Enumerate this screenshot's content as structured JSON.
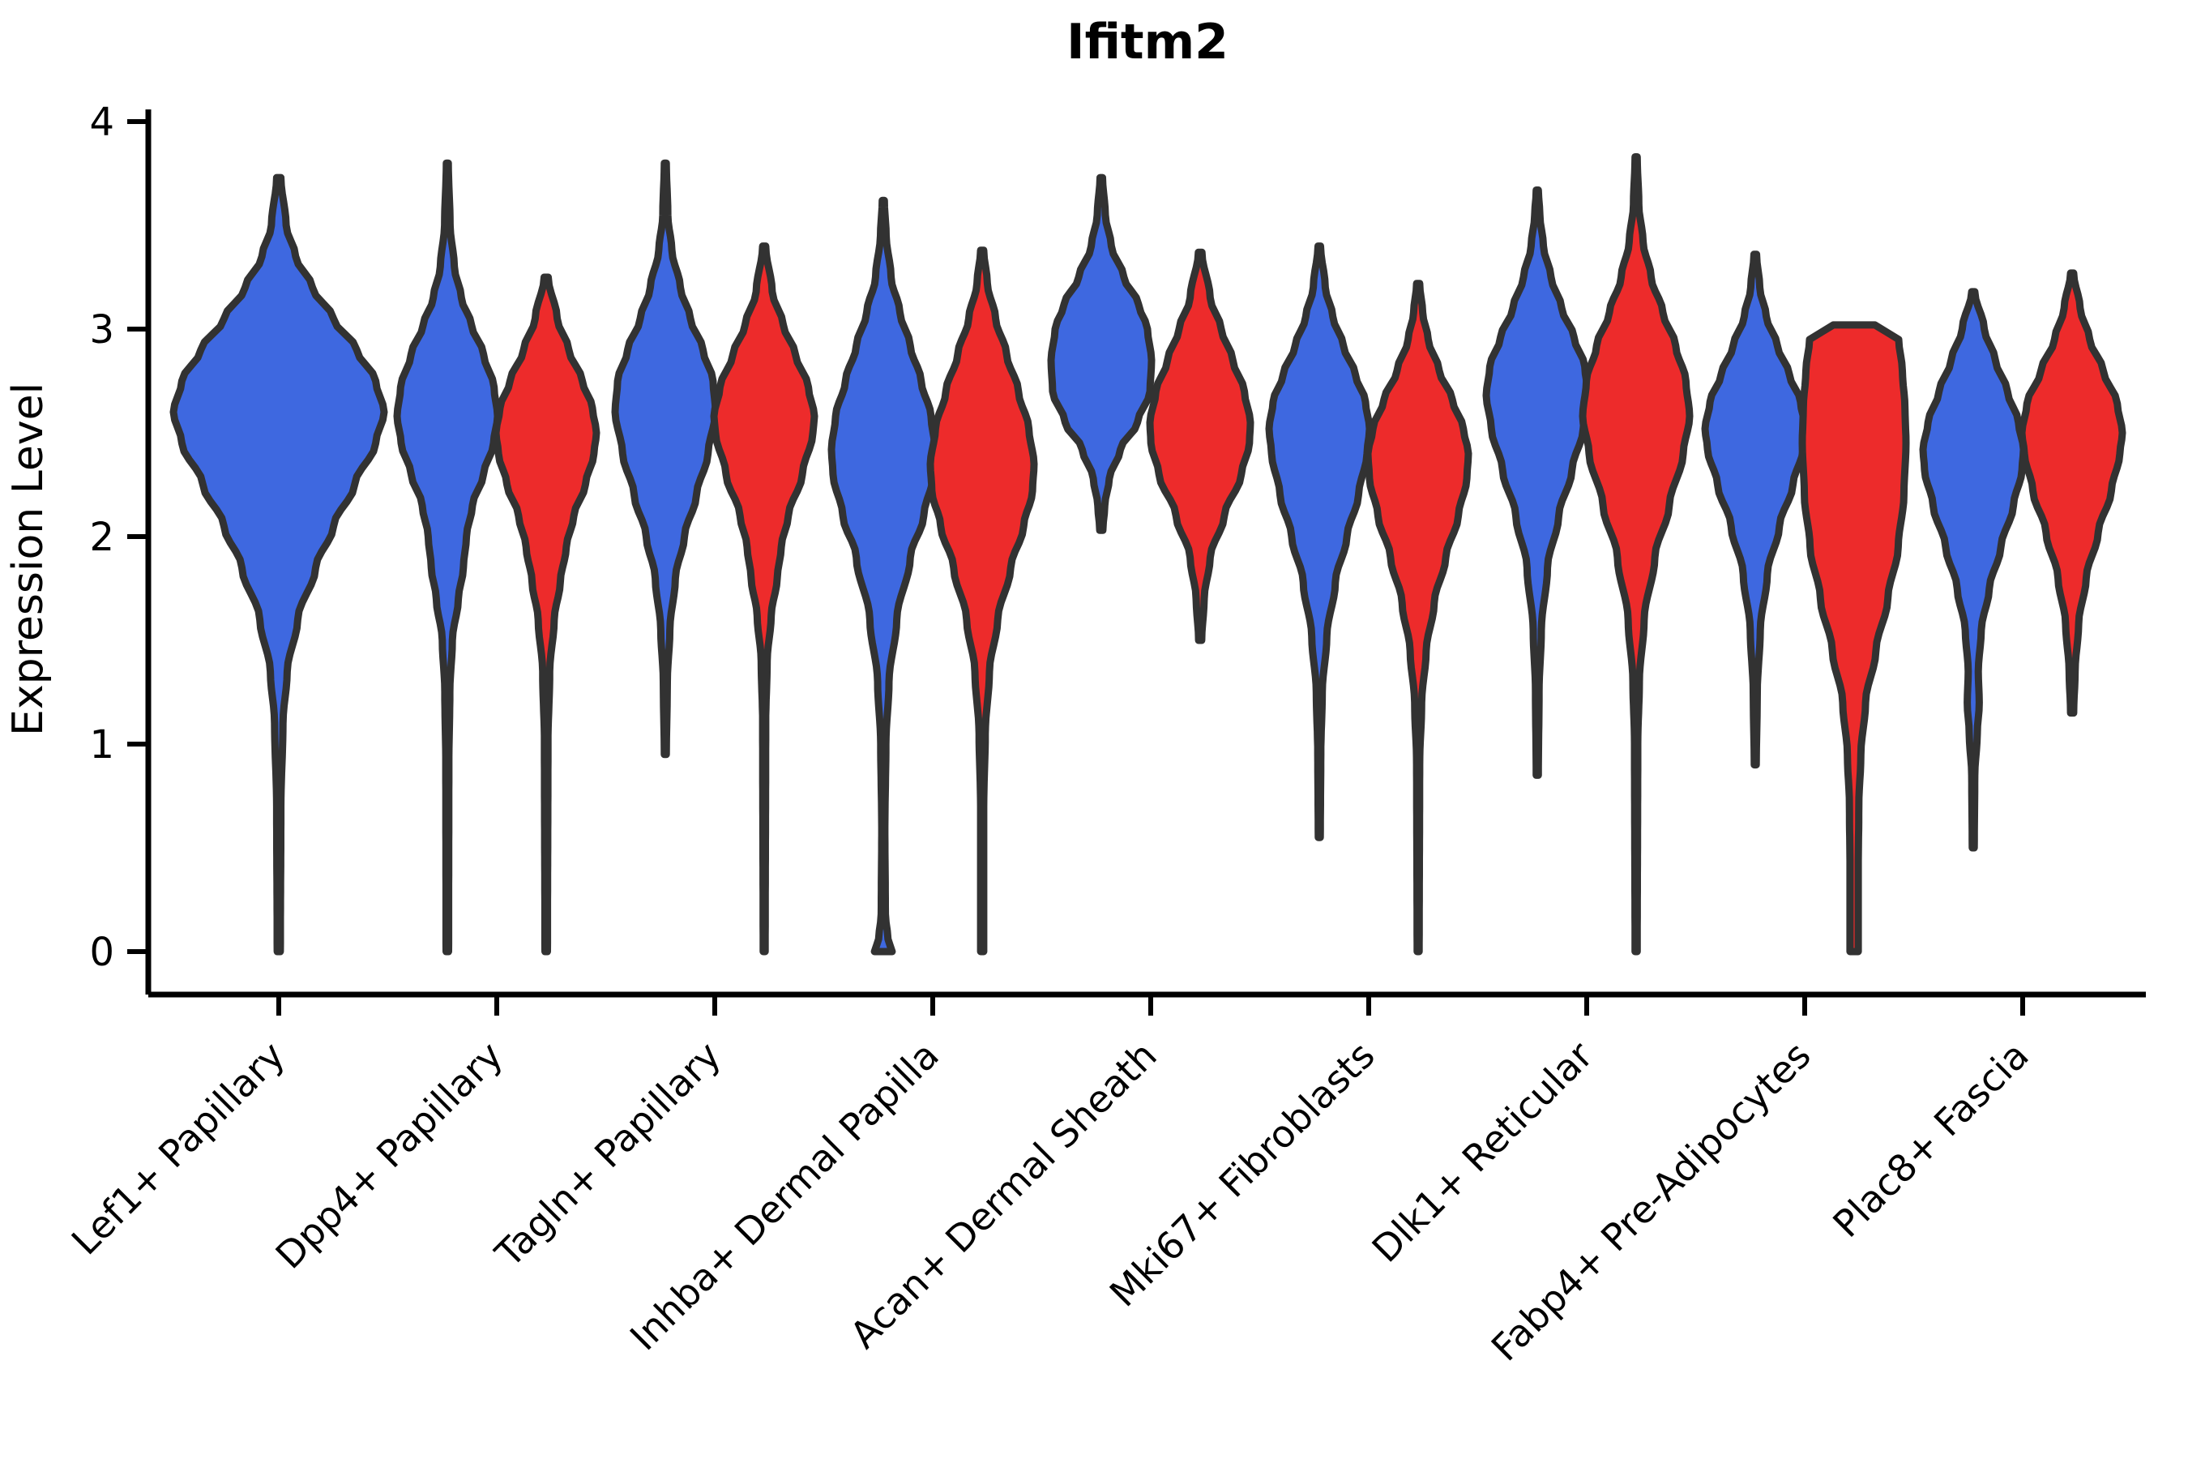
{
  "chart_data": {
    "type": "violin",
    "title": "Ifitm2",
    "ylabel": "Expression Level",
    "xlabel": "",
    "ylim": [
      0,
      4
    ],
    "yticks": [
      "0",
      "1",
      "2",
      "3",
      "4"
    ],
    "grid": false,
    "legend": "none",
    "categories": [
      "Lef1+ Papillary",
      "Dpp4+ Papillary",
      "Tagln+ Papillary",
      "Inhba+ Dermal Papilla",
      "Acan+ Dermal Sheath",
      "Mki67+ Fibroblasts",
      "Dlk1+ Reticular",
      "Fabp4+ Pre-Adipocytes",
      "Plac8+ Fascia"
    ],
    "groups": [
      {
        "name": "condition-1",
        "color": "#3E68E0"
      },
      {
        "name": "condition-2",
        "color": "#ED2B2B"
      }
    ],
    "outline_color": "#323232",
    "violins": [
      {
        "category": 0,
        "group": 0,
        "offset": 0,
        "half_width": 130,
        "range": [
          0.0,
          3.73
        ],
        "peak": 2.6,
        "profile": [
          [
            0.0,
            0.015
          ],
          [
            0.7,
            0.02
          ],
          [
            1.1,
            0.04
          ],
          [
            1.35,
            0.08
          ],
          [
            1.6,
            0.18
          ],
          [
            1.85,
            0.35
          ],
          [
            2.05,
            0.52
          ],
          [
            2.25,
            0.72
          ],
          [
            2.45,
            0.92
          ],
          [
            2.6,
            1.0
          ],
          [
            2.75,
            0.92
          ],
          [
            2.9,
            0.74
          ],
          [
            3.05,
            0.52
          ],
          [
            3.2,
            0.32
          ],
          [
            3.35,
            0.16
          ],
          [
            3.5,
            0.07
          ],
          [
            3.73,
            0.02
          ]
        ]
      },
      {
        "category": 1,
        "group": 0,
        "offset": -61,
        "half_width": 62,
        "range": [
          0.0,
          3.8
        ],
        "peak": 2.58,
        "profile": [
          [
            0.0,
            0.025
          ],
          [
            0.9,
            0.03
          ],
          [
            1.25,
            0.05
          ],
          [
            1.5,
            0.1
          ],
          [
            1.7,
            0.22
          ],
          [
            1.85,
            0.32
          ],
          [
            2.0,
            0.38
          ],
          [
            2.15,
            0.5
          ],
          [
            2.3,
            0.72
          ],
          [
            2.45,
            0.92
          ],
          [
            2.58,
            1.0
          ],
          [
            2.72,
            0.93
          ],
          [
            2.88,
            0.72
          ],
          [
            3.02,
            0.48
          ],
          [
            3.15,
            0.28
          ],
          [
            3.3,
            0.14
          ],
          [
            3.5,
            0.055
          ],
          [
            3.8,
            0.02
          ]
        ]
      },
      {
        "category": 1,
        "group": 1,
        "offset": 61,
        "half_width": 62,
        "range": [
          0.0,
          3.25
        ],
        "peak": 2.5,
        "profile": [
          [
            0.0,
            0.025
          ],
          [
            1.0,
            0.035
          ],
          [
            1.35,
            0.07
          ],
          [
            1.6,
            0.16
          ],
          [
            1.78,
            0.28
          ],
          [
            1.95,
            0.4
          ],
          [
            2.1,
            0.55
          ],
          [
            2.25,
            0.78
          ],
          [
            2.4,
            0.95
          ],
          [
            2.5,
            1.0
          ],
          [
            2.62,
            0.92
          ],
          [
            2.75,
            0.72
          ],
          [
            2.9,
            0.45
          ],
          [
            3.05,
            0.22
          ],
          [
            3.25,
            0.04
          ]
        ]
      },
      {
        "category": 2,
        "group": 0,
        "offset": -61,
        "half_width": 62,
        "range": [
          0.95,
          3.8
        ],
        "peak": 2.6,
        "profile": [
          [
            0.95,
            0.02
          ],
          [
            1.3,
            0.04
          ],
          [
            1.55,
            0.09
          ],
          [
            1.8,
            0.2
          ],
          [
            2.0,
            0.38
          ],
          [
            2.2,
            0.62
          ],
          [
            2.4,
            0.85
          ],
          [
            2.6,
            1.0
          ],
          [
            2.75,
            0.95
          ],
          [
            2.9,
            0.75
          ],
          [
            3.05,
            0.5
          ],
          [
            3.2,
            0.3
          ],
          [
            3.38,
            0.13
          ],
          [
            3.55,
            0.05
          ],
          [
            3.8,
            0.02
          ]
        ]
      },
      {
        "category": 2,
        "group": 1,
        "offset": 61,
        "half_width": 62,
        "range": [
          0.0,
          3.4
        ],
        "peak": 2.58,
        "profile": [
          [
            0.0,
            0.02
          ],
          [
            1.1,
            0.03
          ],
          [
            1.4,
            0.06
          ],
          [
            1.62,
            0.14
          ],
          [
            1.8,
            0.26
          ],
          [
            1.95,
            0.34
          ],
          [
            2.1,
            0.48
          ],
          [
            2.3,
            0.76
          ],
          [
            2.5,
            0.97
          ],
          [
            2.58,
            1.0
          ],
          [
            2.72,
            0.88
          ],
          [
            2.88,
            0.62
          ],
          [
            3.02,
            0.38
          ],
          [
            3.18,
            0.16
          ],
          [
            3.4,
            0.03
          ]
        ]
      },
      {
        "category": 3,
        "group": 0,
        "offset": -61,
        "half_width": 64,
        "range": [
          0.0,
          3.62
        ],
        "peak": 2.42,
        "profile": [
          [
            0.0,
            0.17
          ],
          [
            0.06,
            0.09
          ],
          [
            0.18,
            0.04
          ],
          [
            0.6,
            0.03
          ],
          [
            1.0,
            0.05
          ],
          [
            1.3,
            0.11
          ],
          [
            1.6,
            0.26
          ],
          [
            1.9,
            0.52
          ],
          [
            2.1,
            0.78
          ],
          [
            2.3,
            0.97
          ],
          [
            2.42,
            1.0
          ],
          [
            2.58,
            0.92
          ],
          [
            2.75,
            0.73
          ],
          [
            2.92,
            0.52
          ],
          [
            3.08,
            0.32
          ],
          [
            3.25,
            0.15
          ],
          [
            3.45,
            0.055
          ],
          [
            3.62,
            0.02
          ]
        ]
      },
      {
        "category": 3,
        "group": 1,
        "offset": 61,
        "half_width": 64,
        "range": [
          0.0,
          3.38
        ],
        "peak": 2.35,
        "profile": [
          [
            0.0,
            0.03
          ],
          [
            0.7,
            0.03
          ],
          [
            1.05,
            0.06
          ],
          [
            1.35,
            0.14
          ],
          [
            1.6,
            0.3
          ],
          [
            1.85,
            0.55
          ],
          [
            2.05,
            0.8
          ],
          [
            2.22,
            0.97
          ],
          [
            2.35,
            1.0
          ],
          [
            2.52,
            0.9
          ],
          [
            2.7,
            0.7
          ],
          [
            2.88,
            0.47
          ],
          [
            3.05,
            0.26
          ],
          [
            3.22,
            0.1
          ],
          [
            3.38,
            0.03
          ]
        ]
      },
      {
        "category": 4,
        "group": 0,
        "offset": -61,
        "half_width": 62,
        "range": [
          2.03,
          3.73
        ],
        "peak": 2.85,
        "profile": [
          [
            2.03,
            0.03
          ],
          [
            2.15,
            0.07
          ],
          [
            2.28,
            0.16
          ],
          [
            2.42,
            0.38
          ],
          [
            2.55,
            0.72
          ],
          [
            2.7,
            0.97
          ],
          [
            2.85,
            1.0
          ],
          [
            3.0,
            0.92
          ],
          [
            3.12,
            0.74
          ],
          [
            3.25,
            0.45
          ],
          [
            3.4,
            0.2
          ],
          [
            3.55,
            0.08
          ],
          [
            3.73,
            0.025
          ]
        ]
      },
      {
        "category": 4,
        "group": 1,
        "offset": 61,
        "half_width": 62,
        "range": [
          1.5,
          3.37
        ],
        "peak": 2.55,
        "profile": [
          [
            1.5,
            0.03
          ],
          [
            1.7,
            0.08
          ],
          [
            1.9,
            0.2
          ],
          [
            2.1,
            0.48
          ],
          [
            2.3,
            0.82
          ],
          [
            2.45,
            0.98
          ],
          [
            2.55,
            1.0
          ],
          [
            2.7,
            0.88
          ],
          [
            2.85,
            0.65
          ],
          [
            3.0,
            0.42
          ],
          [
            3.15,
            0.2
          ],
          [
            3.37,
            0.035
          ]
        ]
      },
      {
        "category": 5,
        "group": 0,
        "offset": -61,
        "half_width": 62,
        "range": [
          0.55,
          3.4
        ],
        "peak": 2.52,
        "profile": [
          [
            0.55,
            0.02
          ],
          [
            0.95,
            0.03
          ],
          [
            1.25,
            0.06
          ],
          [
            1.52,
            0.15
          ],
          [
            1.78,
            0.32
          ],
          [
            2.0,
            0.55
          ],
          [
            2.2,
            0.78
          ],
          [
            2.4,
            0.95
          ],
          [
            2.52,
            1.0
          ],
          [
            2.65,
            0.92
          ],
          [
            2.78,
            0.72
          ],
          [
            2.92,
            0.48
          ],
          [
            3.06,
            0.27
          ],
          [
            3.2,
            0.12
          ],
          [
            3.4,
            0.025
          ]
        ]
      },
      {
        "category": 5,
        "group": 1,
        "offset": 61,
        "half_width": 62,
        "range": [
          0.0,
          3.22
        ],
        "peak": 2.4,
        "profile": [
          [
            0.0,
            0.02
          ],
          [
            0.9,
            0.03
          ],
          [
            1.2,
            0.07
          ],
          [
            1.45,
            0.16
          ],
          [
            1.68,
            0.32
          ],
          [
            1.9,
            0.55
          ],
          [
            2.1,
            0.8
          ],
          [
            2.28,
            0.97
          ],
          [
            2.4,
            1.0
          ],
          [
            2.52,
            0.9
          ],
          [
            2.66,
            0.68
          ],
          [
            2.8,
            0.42
          ],
          [
            2.95,
            0.2
          ],
          [
            3.08,
            0.09
          ],
          [
            3.22,
            0.03
          ]
        ]
      },
      {
        "category": 6,
        "group": 0,
        "offset": -61,
        "half_width": 63,
        "range": [
          0.85,
          3.67
        ],
        "peak": 2.68,
        "profile": [
          [
            0.85,
            0.02
          ],
          [
            1.25,
            0.035
          ],
          [
            1.55,
            0.08
          ],
          [
            1.85,
            0.2
          ],
          [
            2.1,
            0.42
          ],
          [
            2.32,
            0.68
          ],
          [
            2.52,
            0.9
          ],
          [
            2.68,
            1.0
          ],
          [
            2.82,
            0.93
          ],
          [
            2.96,
            0.72
          ],
          [
            3.1,
            0.48
          ],
          [
            3.25,
            0.27
          ],
          [
            3.4,
            0.12
          ],
          [
            3.55,
            0.05
          ],
          [
            3.67,
            0.02
          ]
        ]
      },
      {
        "category": 6,
        "group": 1,
        "offset": 61,
        "half_width": 66,
        "range": [
          0.0,
          3.83
        ],
        "peak": 2.58,
        "profile": [
          [
            0.0,
            0.02
          ],
          [
            1.0,
            0.03
          ],
          [
            1.3,
            0.06
          ],
          [
            1.6,
            0.15
          ],
          [
            1.9,
            0.35
          ],
          [
            2.15,
            0.62
          ],
          [
            2.4,
            0.88
          ],
          [
            2.58,
            1.0
          ],
          [
            2.75,
            0.93
          ],
          [
            2.92,
            0.74
          ],
          [
            3.08,
            0.5
          ],
          [
            3.25,
            0.28
          ],
          [
            3.42,
            0.13
          ],
          [
            3.6,
            0.05
          ],
          [
            3.83,
            0.02
          ]
        ]
      },
      {
        "category": 7,
        "group": 0,
        "offset": -61,
        "half_width": 62,
        "range": [
          0.9,
          3.36
        ],
        "peak": 2.52,
        "profile": [
          [
            0.9,
            0.02
          ],
          [
            1.25,
            0.04
          ],
          [
            1.55,
            0.1
          ],
          [
            1.82,
            0.24
          ],
          [
            2.05,
            0.48
          ],
          [
            2.25,
            0.75
          ],
          [
            2.42,
            0.95
          ],
          [
            2.52,
            1.0
          ],
          [
            2.65,
            0.9
          ],
          [
            2.78,
            0.68
          ],
          [
            2.92,
            0.44
          ],
          [
            3.06,
            0.22
          ],
          [
            3.2,
            0.09
          ],
          [
            3.36,
            0.025
          ]
        ]
      },
      {
        "category": 7,
        "group": 1,
        "offset": 61,
        "half_width": 64,
        "range": [
          0.0,
          3.02
        ],
        "peak": 2.45,
        "flat_top": true,
        "profile": [
          [
            0.0,
            0.08
          ],
          [
            0.4,
            0.08
          ],
          [
            0.7,
            0.09
          ],
          [
            0.95,
            0.13
          ],
          [
            1.2,
            0.22
          ],
          [
            1.45,
            0.42
          ],
          [
            1.7,
            0.65
          ],
          [
            1.95,
            0.85
          ],
          [
            2.2,
            0.96
          ],
          [
            2.45,
            1.0
          ],
          [
            2.62,
            0.98
          ],
          [
            2.8,
            0.93
          ],
          [
            2.95,
            0.86
          ],
          [
            3.02,
            0.4
          ]
        ]
      },
      {
        "category": 8,
        "group": 0,
        "offset": -61,
        "half_width": 62,
        "range": [
          0.5,
          3.18
        ],
        "peak": 2.42,
        "profile": [
          [
            0.5,
            0.02
          ],
          [
            0.85,
            0.03
          ],
          [
            1.05,
            0.08
          ],
          [
            1.2,
            0.12
          ],
          [
            1.35,
            0.1
          ],
          [
            1.55,
            0.16
          ],
          [
            1.75,
            0.32
          ],
          [
            1.95,
            0.55
          ],
          [
            2.15,
            0.8
          ],
          [
            2.32,
            0.97
          ],
          [
            2.42,
            1.0
          ],
          [
            2.55,
            0.9
          ],
          [
            2.7,
            0.68
          ],
          [
            2.85,
            0.44
          ],
          [
            3.0,
            0.22
          ],
          [
            3.18,
            0.03
          ]
        ]
      },
      {
        "category": 8,
        "group": 1,
        "offset": 61,
        "half_width": 62,
        "range": [
          1.15,
          3.27
        ],
        "peak": 2.5,
        "profile": [
          [
            1.15,
            0.03
          ],
          [
            1.35,
            0.06
          ],
          [
            1.58,
            0.13
          ],
          [
            1.8,
            0.28
          ],
          [
            2.02,
            0.52
          ],
          [
            2.22,
            0.78
          ],
          [
            2.4,
            0.95
          ],
          [
            2.5,
            1.0
          ],
          [
            2.64,
            0.9
          ],
          [
            2.8,
            0.62
          ],
          [
            2.95,
            0.35
          ],
          [
            3.1,
            0.16
          ],
          [
            3.27,
            0.03
          ]
        ]
      }
    ]
  }
}
